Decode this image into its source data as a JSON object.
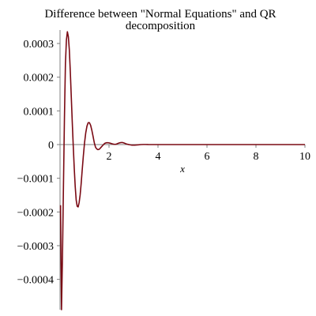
{
  "chart_data": {
    "type": "line",
    "title_line1": "Difference between \"Normal Equations\" and QR",
    "title_line2": "decomposition",
    "xlabel": "x",
    "ylabel": "",
    "xlim": [
      0,
      10
    ],
    "ylim": [
      -0.00049,
      0.00034
    ],
    "grid": false,
    "x_ticks": [
      {
        "value": 2,
        "label": "2"
      },
      {
        "value": 4,
        "label": "4"
      },
      {
        "value": 6,
        "label": "6"
      },
      {
        "value": 8,
        "label": "8"
      },
      {
        "value": 10,
        "label": "10"
      }
    ],
    "y_ticks": [
      {
        "value": 0.0003,
        "label": "0.0003"
      },
      {
        "value": 0.0002,
        "label": "0.0002"
      },
      {
        "value": 0.0001,
        "label": "0.0001"
      },
      {
        "value": 0,
        "label": "0"
      },
      {
        "value": -0.0001,
        "label": "−0.0001"
      },
      {
        "value": -0.0002,
        "label": "−0.0002"
      },
      {
        "value": -0.0003,
        "label": "−0.0003"
      },
      {
        "value": -0.0004,
        "label": "−0.0004"
      }
    ],
    "series": [
      {
        "color": "#7a0a14",
        "x": [
          0.02,
          0.06,
          0.1,
          0.14,
          0.18,
          0.22,
          0.26,
          0.3,
          0.34,
          0.38,
          0.42,
          0.46,
          0.5,
          0.54,
          0.58,
          0.62,
          0.66,
          0.7,
          0.74,
          0.78,
          0.82,
          0.86,
          0.9,
          0.95,
          1.0,
          1.05,
          1.1,
          1.15,
          1.2,
          1.25,
          1.3,
          1.35,
          1.4,
          1.45,
          1.5,
          1.55,
          1.6,
          1.65,
          1.7,
          1.75,
          1.8,
          1.85,
          1.9,
          1.95,
          2.0,
          2.05,
          2.1,
          2.15,
          2.2,
          2.25,
          2.3,
          2.35,
          2.4,
          2.45,
          2.5,
          2.55,
          2.6,
          2.65,
          2.7,
          2.75,
          2.8,
          2.85,
          2.9,
          2.95,
          3.0,
          3.05,
          3.1,
          3.15,
          3.2,
          3.3,
          3.4,
          3.5,
          3.6,
          3.8,
          4.0,
          4.5,
          5.0,
          6.0,
          7.0,
          8.0,
          9.0,
          10.0
        ],
        "y": [
          -0.00018,
          -0.00049,
          -0.00033,
          -0.00012,
          8e-05,
          0.00024,
          0.00031,
          0.000335,
          0.00032,
          0.00028,
          0.000215,
          0.00014,
          6.5e-05,
          -5e-06,
          -7e-05,
          -0.000125,
          -0.000165,
          -0.000183,
          -0.000185,
          -0.000172,
          -0.00015,
          -0.000118,
          -8e-05,
          -3.5e-05,
          5e-06,
          3.5e-05,
          5.5e-05,
          6.5e-05,
          6.5e-05,
          5.7e-05,
          4.2e-05,
          2.4e-05,
          5e-06,
          -8e-06,
          -1.3e-05,
          -1.5e-05,
          -1.4e-05,
          -1e-05,
          -6e-06,
          -2e-06,
          2e-06,
          4.5e-06,
          5.5e-06,
          5.5e-06,
          5e-06,
          4e-06,
          3e-06,
          1.8e-06,
          1e-06,
          6e-07,
          1.3e-06,
          3e-06,
          4.5e-06,
          5.5e-06,
          6e-06,
          6e-06,
          5e-06,
          3.5e-06,
          2e-06,
          1e-06,
          2e-07,
          -6e-07,
          -1.2e-06,
          -1.5e-06,
          -1.6e-06,
          -1.5e-06,
          -1.2e-06,
          -9e-07,
          -6e-07,
          0.0,
          3e-07,
          3e-07,
          1e-07,
          0.0,
          0.0,
          0.0,
          0.0,
          0.0,
          0.0,
          0.0,
          0.0,
          0.0
        ]
      }
    ]
  }
}
